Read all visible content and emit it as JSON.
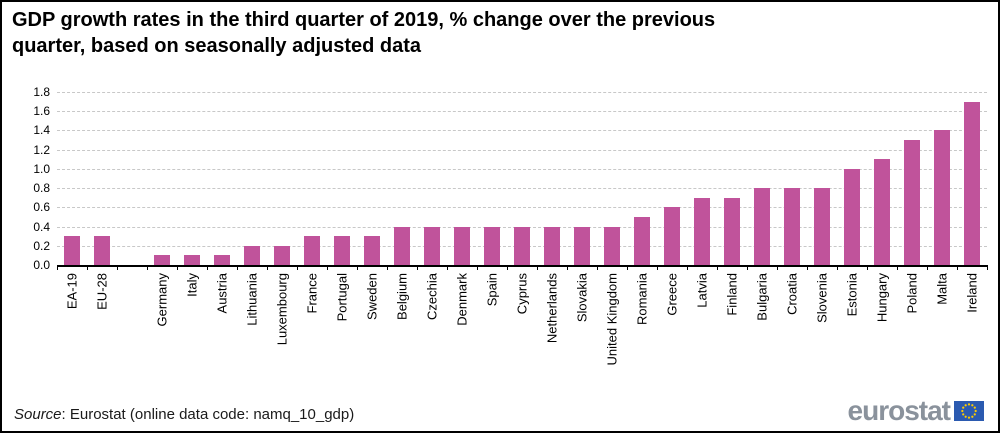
{
  "title": "GDP growth rates in the third quarter of 2019, % change over the previous quarter, based on seasonally adjusted data",
  "footer": {
    "source_label": "Source",
    "source_text": ": Eurostat (online data code: namq_10_gdp)",
    "logo_text": "eurostat"
  },
  "colors": {
    "bar": "#C0539B",
    "gridline": "#c8c8c8",
    "axis": "#000000",
    "logo_gray": "#8a929c",
    "flag_blue": "#2B5AB0",
    "flag_star_yellow": "#FFCC00"
  },
  "chart_data": {
    "type": "bar",
    "title": "GDP growth rates in the third quarter of 2019, % change over the previous quarter, based on seasonally adjusted data",
    "xlabel": "",
    "ylabel": "",
    "ylim": [
      0,
      1.8
    ],
    "ytick_step": 0.2,
    "grid": true,
    "legend": false,
    "bar_color": "#C0539B",
    "categories": [
      "EA-19",
      "EU-28",
      "",
      "Germany",
      "Italy",
      "Austria",
      "Lithuania",
      "Luxembourg",
      "France",
      "Portugal",
      "Sweden",
      "Belgium",
      "Czechia",
      "Denmark",
      "Spain",
      "Cyprus",
      "Netherlands",
      "Slovakia",
      "United Kingdom",
      "Romania",
      "Greece",
      "Latvia",
      "Finland",
      "Bulgaria",
      "Croatia",
      "Slovenia",
      "Estonia",
      "Hungary",
      "Poland",
      "Malta",
      "Ireland"
    ],
    "values": [
      0.3,
      0.3,
      null,
      0.1,
      0.1,
      0.1,
      0.2,
      0.2,
      0.3,
      0.3,
      0.3,
      0.4,
      0.4,
      0.4,
      0.4,
      0.4,
      0.4,
      0.4,
      0.4,
      0.5,
      0.6,
      0.7,
      0.7,
      0.8,
      0.8,
      0.8,
      1.0,
      1.1,
      1.3,
      1.4,
      1.7
    ]
  }
}
